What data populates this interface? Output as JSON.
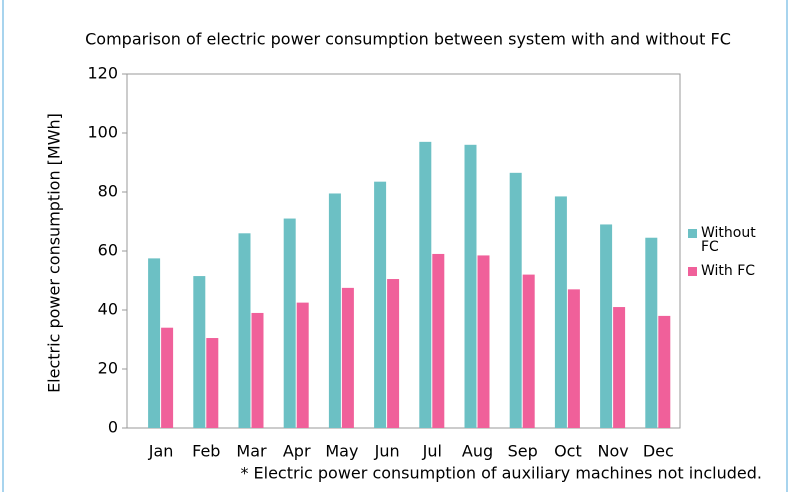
{
  "chart_data": {
    "type": "bar",
    "title": "Comparison of electric power consumption between system with and without FC",
    "y_label": "Electric power consumption [MWh]",
    "footnote": "* Electric power consumption of auxiliary machines not included.",
    "categories": [
      "Jan",
      "Feb",
      "Mar",
      "Apr",
      "May",
      "Jun",
      "Jul",
      "Aug",
      "Sep",
      "Oct",
      "Nov",
      "Dec"
    ],
    "series": [
      {
        "name": "Without FC",
        "color": "#6cc0c4",
        "values": [
          57.5,
          51.5,
          66,
          71,
          79.5,
          83.5,
          97,
          96,
          86.5,
          78.5,
          69,
          64.5
        ]
      },
      {
        "name": "With FC",
        "color": "#f0609a",
        "values": [
          34,
          30.5,
          39,
          42.5,
          47.5,
          50.5,
          59,
          58.5,
          52,
          47,
          41,
          38
        ]
      }
    ],
    "ylim": [
      0,
      120
    ],
    "yticks": [
      0,
      20,
      40,
      60,
      80,
      100,
      120
    ],
    "grid": false,
    "legend": "right"
  }
}
